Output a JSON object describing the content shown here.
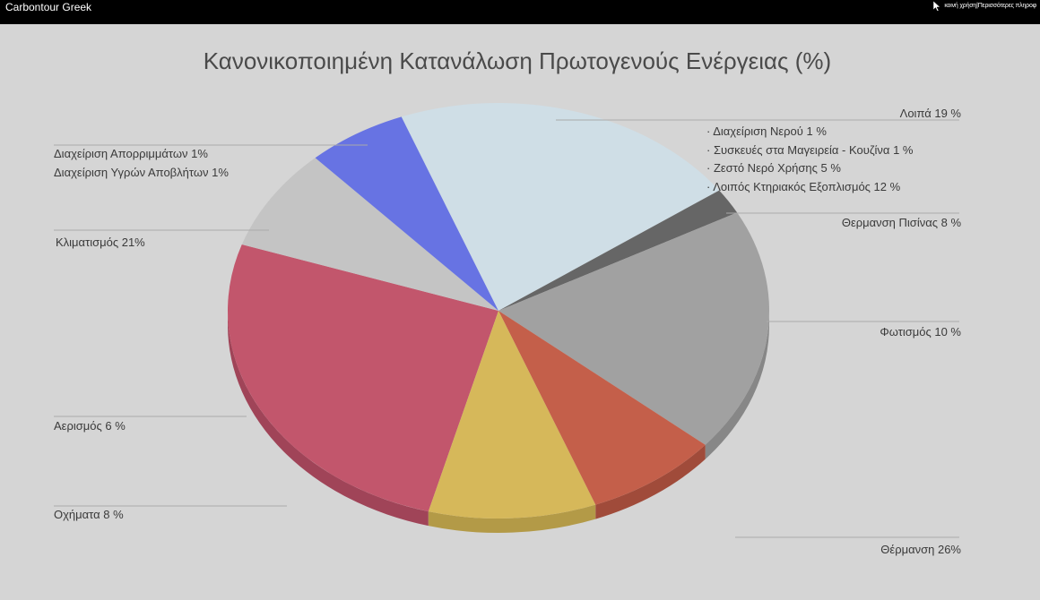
{
  "app": {
    "title": "Carbontour Greek",
    "topbar_right": "κοινή χρήση|Περισσότερες πληροφ"
  },
  "chart_data": {
    "type": "pie",
    "title": "Κανονικοποιημένη Κατανάλωση Πρωτογενούς Ενέργειας (%)",
    "slices": [
      {
        "label": "Θέρμανση",
        "value": 26,
        "color": "#c2566c",
        "side": "#a04458"
      },
      {
        "label": "Οχήματα",
        "value": 8,
        "color": "#c4c4c4",
        "side": "#a9a9a9"
      },
      {
        "label": "Αερισμός",
        "value": 6,
        "color": "#6773e3",
        "side": "#4d56b6"
      },
      {
        "label": "Κλιματισμός",
        "value": 21,
        "color": "#cfdee6",
        "side": "#aebcc4"
      },
      {
        "label": "Διαχείριση Απορριμμάτων / Διαχείριση Υγρών Αποβλήτων",
        "value": 2,
        "color": "#666666",
        "side": "#4d4d4d"
      },
      {
        "label": "Λοιπά",
        "value": 19,
        "color": "#a1a1a1",
        "side": "#878787"
      },
      {
        "label": "Θερμανση Πισίνας",
        "value": 8,
        "color": "#c45f4a",
        "side": "#a04b3a"
      },
      {
        "label": "Φωτισμός",
        "value": 10,
        "color": "#d6b85a",
        "side": "#b39a47"
      }
    ],
    "labels": {
      "waste1": "Διαχείριση Απορριμμάτων 1%",
      "waste2": "Διαχείριση Υγρών Αποβλήτων 1%",
      "ac": "Κλιματισμός 21%",
      "vent": "Αερισμός 6 %",
      "vehicles": "Οχήματα 8 %",
      "heating": "Θέρμανση 26%",
      "lighting": "Φωτισμός 10 %",
      "pool": "Θερμανση Πισίνας 8 %",
      "other": "Λοιπά 19 %",
      "sub1": "· Διαχείριση Νερού 1 %",
      "sub2": "· Συσκευές στα Μαγειρεία - Κουζίνα 1 %",
      "sub3": "· Ζεστό Νερό Χρήσης  5 %",
      "sub4": "· Λοιπός Κτηριακός Εξοπλισμός 12 %"
    }
  }
}
